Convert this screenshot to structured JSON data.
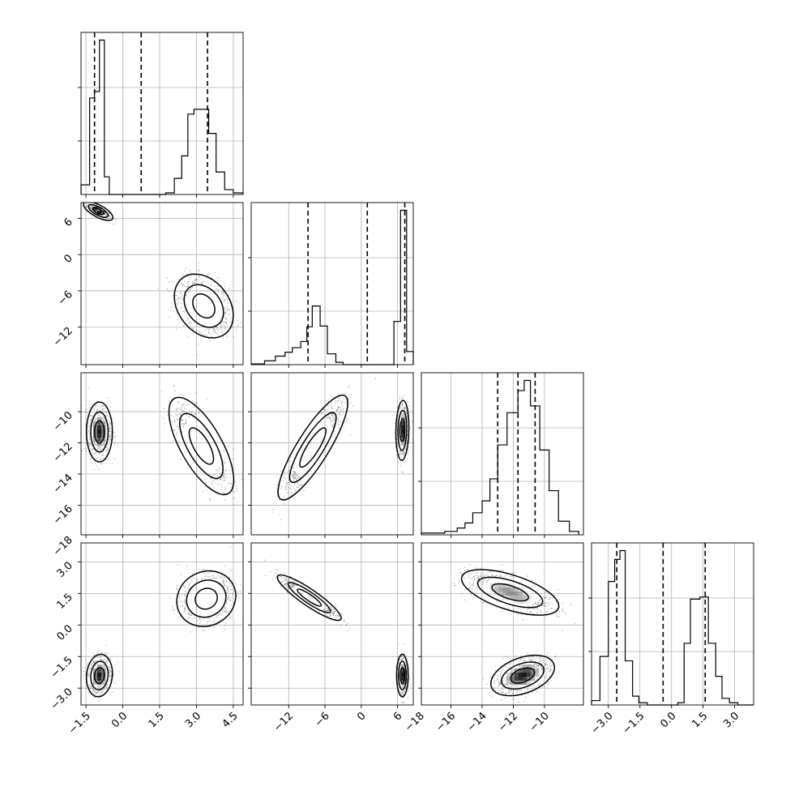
{
  "chart_data": {
    "type": "corner",
    "title": "",
    "grid": true,
    "params": [
      {
        "range": [
          -1.7,
          4.9
        ],
        "ticks": [
          -1.5,
          0.0,
          1.5,
          3.0,
          4.5
        ],
        "tick_labels": [
          "−1.5",
          "0.0",
          "1.5",
          "3.0",
          "4.5"
        ],
        "quantiles": [
          -1.15,
          0.75,
          3.45
        ],
        "hist": {
          "edges": [
            -1.7,
            -1.35,
            -1.15,
            -0.95,
            -0.75,
            -0.55,
            -0.35,
            1.75,
            2.1,
            2.4,
            2.65,
            2.9,
            3.2,
            3.5,
            3.8,
            4.15,
            4.5,
            4.9
          ],
          "counts": [
            0.06,
            0.6,
            0.64,
            0.96,
            0.11,
            0.0,
            0.0,
            0.01,
            0.1,
            0.24,
            0.5,
            0.53,
            0.53,
            0.38,
            0.14,
            0.03,
            0.01
          ]
        }
      },
      {
        "range": [
          -18.2,
          8.6
        ],
        "ticks": [
          -12,
          -6,
          0,
          6
        ],
        "tick_labels": [
          "−12",
          "−6",
          "0",
          "6"
        ],
        "quantiles": [
          -8.8,
          1.0,
          7.2
        ],
        "hist": {
          "edges": [
            -18.2,
            -16.0,
            -14.2,
            -12.6,
            -11.4,
            -10.0,
            -9.0,
            -8.1,
            -6.8,
            -5.6,
            -4.2,
            -3.0,
            5.4,
            6.5,
            7.5,
            8.6
          ],
          "counts": [
            0.01,
            0.05,
            0.11,
            0.16,
            0.22,
            0.3,
            0.49,
            0.76,
            0.5,
            0.14,
            0.03,
            0.0,
            0.56,
            2.0,
            0.17
          ]
        }
      },
      {
        "range": [
          -17.9,
          -7.5
        ],
        "ticks": [
          -18,
          -16,
          -14,
          -12,
          -10
        ],
        "tick_labels": [
          "−18",
          "−16",
          "−14",
          "−12",
          "−10"
        ],
        "quantiles": [
          -13.0,
          -11.7,
          -10.6
        ],
        "hist": {
          "edges": [
            -17.9,
            -16.4,
            -15.6,
            -15.1,
            -14.6,
            -14.0,
            -13.5,
            -13.0,
            -12.4,
            -11.7,
            -11.3,
            -10.9,
            -10.3,
            -9.7,
            -9.1,
            -8.4,
            -7.8
          ],
          "counts": [
            0.01,
            0.02,
            0.04,
            0.07,
            0.13,
            0.2,
            0.33,
            0.53,
            0.72,
            0.85,
            0.91,
            0.76,
            0.5,
            0.26,
            0.08,
            0.02
          ]
        }
      },
      {
        "range": [
          -3.8,
          3.9
        ],
        "ticks": [
          -3.0,
          -1.5,
          0.0,
          1.5,
          3.0
        ],
        "tick_labels": [
          "−3.0",
          "−1.5",
          "0.0",
          "1.5",
          "3.0"
        ],
        "quantiles": [
          -2.6,
          -0.4,
          1.6
        ],
        "hist": {
          "edges": [
            -3.8,
            -3.4,
            -3.0,
            -2.7,
            -2.45,
            -2.2,
            -1.85,
            -1.55,
            -1.15,
            0.3,
            0.6,
            0.9,
            1.35,
            1.75,
            2.1,
            2.4,
            2.75,
            3.15,
            3.9
          ],
          "counts": [
            0.02,
            0.22,
            0.56,
            0.66,
            0.7,
            0.2,
            0.04,
            0.01,
            0.0,
            0.01,
            0.28,
            0.48,
            0.49,
            0.28,
            0.13,
            0.03,
            0.01,
            0.0
          ]
        }
      }
    ],
    "pair_blobs": [
      {
        "row": 1,
        "col": 0,
        "modes": [
          {
            "cx": -1.0,
            "cy": 7.2,
            "sx": 0.25,
            "sy": 0.65,
            "rho": -0.7,
            "w": 0.5,
            "n": 350
          },
          {
            "cx": 3.3,
            "cy": -8.5,
            "sx": 0.5,
            "sy": 2.2,
            "rho": -0.3,
            "w": 0.5,
            "n": 1100
          }
        ]
      },
      {
        "row": 2,
        "col": 0,
        "modes": [
          {
            "cx": -0.95,
            "cy": -11.3,
            "sx": 0.22,
            "sy": 0.8,
            "rho": 0.0,
            "w": 0.5,
            "n": 800
          },
          {
            "cx": 3.2,
            "cy": -12.2,
            "sx": 0.55,
            "sy": 1.3,
            "rho": -0.7,
            "w": 0.5,
            "n": 900
          }
        ]
      },
      {
        "row": 2,
        "col": 1,
        "modes": [
          {
            "cx": -8.0,
            "cy": -12.3,
            "sx": 2.4,
            "sy": 1.4,
            "rho": 0.85,
            "w": 0.5,
            "n": 1000
          },
          {
            "cx": 6.8,
            "cy": -11.2,
            "sx": 0.45,
            "sy": 0.8,
            "rho": 0.1,
            "w": 0.5,
            "n": 600
          }
        ]
      },
      {
        "row": 3,
        "col": 0,
        "modes": [
          {
            "cx": -0.95,
            "cy": -2.4,
            "sx": 0.22,
            "sy": 0.42,
            "rho": 0.1,
            "w": 0.5,
            "n": 750
          },
          {
            "cx": 3.4,
            "cy": 1.25,
            "sx": 0.5,
            "sy": 0.55,
            "rho": 0.1,
            "w": 0.5,
            "n": 900
          }
        ]
      },
      {
        "row": 3,
        "col": 1,
        "modes": [
          {
            "cx": -8.6,
            "cy": 1.3,
            "sx": 2.2,
            "sy": 0.45,
            "rho": -0.9,
            "w": 0.5,
            "n": 850
          },
          {
            "cx": 6.8,
            "cy": -2.4,
            "sx": 0.4,
            "sy": 0.42,
            "rho": 0.0,
            "w": 0.5,
            "n": 600
          }
        ]
      },
      {
        "row": 3,
        "col": 2,
        "modes": [
          {
            "cx": -12.2,
            "cy": 1.55,
            "sx": 1.3,
            "sy": 0.45,
            "rho": -0.6,
            "w": 0.5,
            "n": 1100
          },
          {
            "cx": -11.4,
            "cy": -2.4,
            "sx": 0.85,
            "sy": 0.4,
            "rho": 0.4,
            "w": 0.5,
            "n": 900
          }
        ]
      }
    ]
  }
}
